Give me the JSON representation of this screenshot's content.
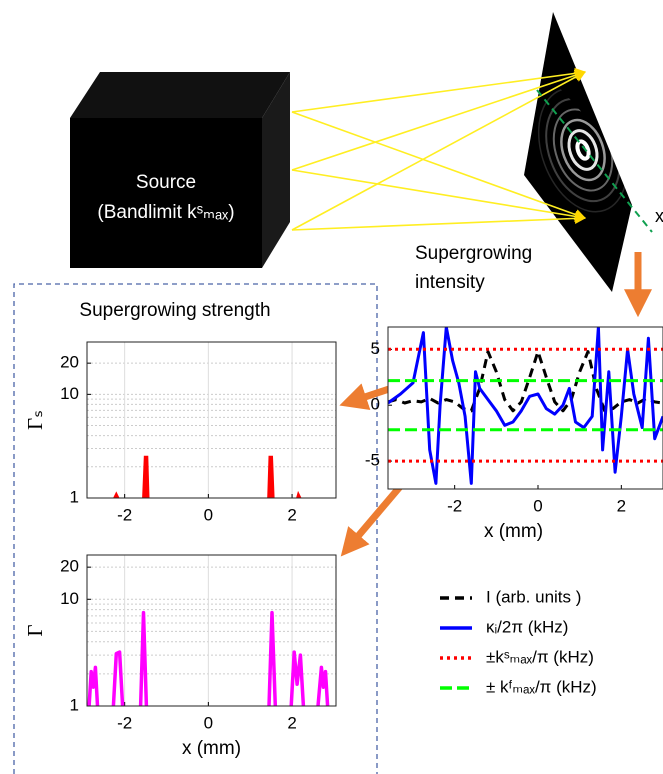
{
  "diagram": {
    "source_label": "Source",
    "source_sublabel": "(Bandlimit kˢₘₐₓ)",
    "axis_marker": "x",
    "intensity_label": [
      "Supergrowing",
      "intensity"
    ],
    "strength_label": "Supergrowing strength"
  },
  "chart_data": [
    {
      "type": "line",
      "xlabel": "x (mm)",
      "xlim": [
        -3.6,
        3
      ],
      "ylim": [
        -7.5,
        7
      ],
      "xticks": [
        -2,
        0,
        2
      ],
      "yticks": [
        5,
        0,
        -5
      ],
      "grid": false,
      "legend": "below",
      "series": [
        {
          "name": "I (arb. units )",
          "color": "#000000",
          "dash": "dashed",
          "x": [
            -3.6,
            -3.4,
            -3.2,
            -3.0,
            -2.8,
            -2.6,
            -2.4,
            -2.2,
            -2.0,
            -1.8,
            -1.6,
            -1.4,
            -1.2,
            -1.0,
            -0.8,
            -0.6,
            -0.4,
            -0.2,
            0,
            0.2,
            0.4,
            0.6,
            0.8,
            1.0,
            1.2,
            1.4,
            1.6,
            1.8,
            2.0,
            2.2,
            2.4,
            2.6,
            2.8,
            3.0
          ],
          "values": [
            0.3,
            0.5,
            0.2,
            0.4,
            0.3,
            0.6,
            0.2,
            0.5,
            0.3,
            -0.3,
            -0.5,
            1.5,
            4.8,
            3,
            0.5,
            -0.5,
            0.3,
            2.5,
            4.8,
            2.5,
            0.3,
            -0.5,
            0.5,
            3,
            4.8,
            1.5,
            -0.5,
            -0.3,
            0.3,
            0.5,
            0.2,
            0.6,
            0.3,
            0.2
          ]
        },
        {
          "name": "κᵢ/2π (kHz)",
          "color": "#0000ff",
          "dash": "solid",
          "x": [
            -3.6,
            -3.3,
            -3.0,
            -2.75,
            -2.6,
            -2.45,
            -2.35,
            -2.2,
            -2.05,
            -1.9,
            -1.75,
            -1.6,
            -1.5,
            -1.4,
            -1.2,
            -1.0,
            -0.8,
            -0.6,
            -0.4,
            -0.2,
            0,
            0.2,
            0.4,
            0.6,
            0.75,
            0.9,
            1.1,
            1.3,
            1.45,
            1.55,
            1.7,
            1.85,
            2.0,
            2.15,
            2.3,
            2.5,
            2.65,
            2.8,
            3.0
          ],
          "values": [
            0.2,
            1,
            2,
            6.5,
            -4,
            -7,
            0,
            7,
            4,
            2,
            -1,
            -7,
            3,
            1.5,
            0.5,
            -0.5,
            -1.8,
            -1.5,
            -0.5,
            0.8,
            1,
            -0.3,
            -0.8,
            0,
            1.5,
            -1.5,
            -2,
            -1,
            7,
            -4,
            3,
            -6,
            -1,
            5,
            1,
            -2,
            6,
            -3,
            -1
          ]
        },
        {
          "name": "±kˢₘₐₓ/π (kHz)",
          "color": "#ff0000",
          "dash": "dotted",
          "x": [
            -3.6,
            3,
            null,
            -3.6,
            3
          ],
          "values": [
            5,
            5,
            null,
            -5,
            -5
          ]
        },
        {
          "name": "± kᶠₘₐₓ/π (kHz)",
          "color": "#00ff00",
          "dash": "dashdot",
          "x": [
            -3.6,
            3,
            null,
            -3.6,
            3
          ],
          "values": [
            2.2,
            2.2,
            null,
            -2.2,
            -2.2
          ]
        }
      ]
    },
    {
      "type": "area",
      "title": "Supergrowing strength",
      "ylabel": "Γₛ",
      "log_y": true,
      "grid": true,
      "xlim": [
        -2.9,
        3.05
      ],
      "ylim": [
        1,
        32
      ],
      "xticks": [
        -2,
        0,
        2
      ],
      "yticks": [
        1,
        10,
        20
      ],
      "y_minor_ticks": [
        2,
        3,
        4,
        5,
        6,
        7,
        8,
        9
      ],
      "series": [
        {
          "color": "#ff0000",
          "x": [
            -2.25,
            -2.2,
            -2.15,
            null,
            -1.56,
            -1.52,
            -1.46,
            -1.43,
            null,
            1.43,
            1.46,
            1.52,
            1.56,
            null,
            2.12,
            2.15,
            2.2
          ],
          "values": [
            1,
            1.1,
            1,
            null,
            1,
            2.5,
            2.5,
            1,
            null,
            1,
            2.5,
            2.5,
            1,
            null,
            1,
            1.1,
            1
          ]
        }
      ]
    },
    {
      "type": "line",
      "ylabel": "Γ",
      "xlabel": "x (mm)",
      "log_y": true,
      "grid": true,
      "xlim": [
        -2.9,
        3.05
      ],
      "ylim": [
        1,
        26
      ],
      "xticks": [
        -2,
        0,
        2
      ],
      "yticks": [
        1,
        10,
        20
      ],
      "y_minor_ticks": [
        2,
        3,
        4,
        5,
        6,
        7,
        8,
        9
      ],
      "series": [
        {
          "color": "#ff00ff",
          "x": [
            -2.85,
            -2.8,
            -2.75,
            -2.7,
            -2.65,
            null,
            -2.27,
            -2.2,
            -2.12,
            -2.05,
            null,
            -1.62,
            -1.55,
            -1.48,
            null,
            1.45,
            1.52,
            1.6,
            null,
            1.98,
            2.05,
            2.12,
            2.2,
            2.27,
            null,
            2.62,
            2.7,
            2.75,
            2.8,
            2.85
          ],
          "values": [
            1,
            2.1,
            1.5,
            2.3,
            1,
            null,
            1,
            3.1,
            3.2,
            1,
            null,
            1,
            7.5,
            1,
            null,
            1,
            7.5,
            1,
            null,
            1,
            3.2,
            1.6,
            3,
            1,
            null,
            1,
            2.3,
            1.5,
            2.1,
            1
          ]
        }
      ]
    }
  ]
}
